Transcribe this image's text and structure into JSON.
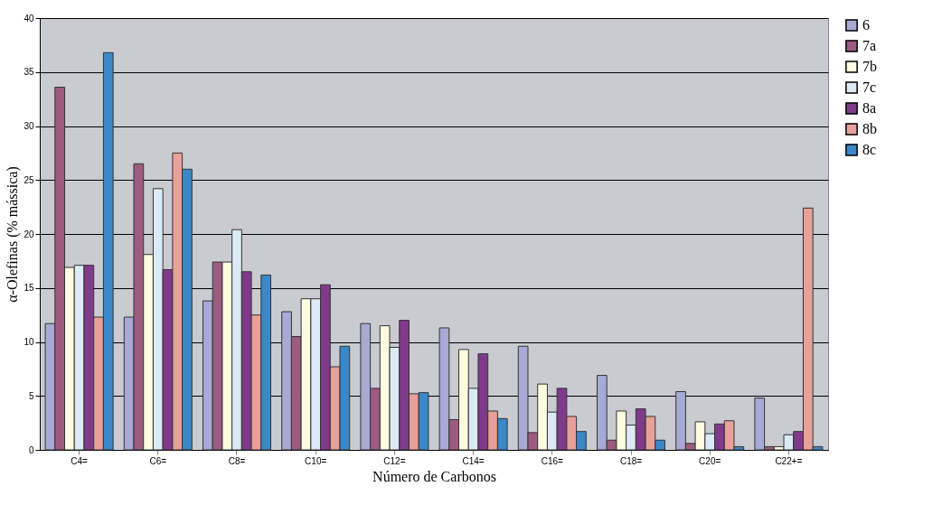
{
  "chart_data": {
    "type": "bar",
    "xlabel": "Número de Carbonos",
    "ylabel": "α-Olefinas (% mássica)",
    "categories": [
      "C4=",
      "C6=",
      "C8=",
      "C10=",
      "C12=",
      "C14=",
      "C16=",
      "C18=",
      "C20=",
      "C22+="
    ],
    "ylim": [
      0,
      40
    ],
    "yticks": [
      0,
      5,
      10,
      15,
      20,
      25,
      30,
      35,
      40
    ],
    "grid": "y",
    "legend": "right",
    "series": [
      {
        "name": "6",
        "color": "#a9a9d6",
        "values": [
          11.7,
          12.3,
          13.8,
          12.8,
          11.7,
          11.3,
          9.6,
          6.9,
          5.4,
          4.8
        ]
      },
      {
        "name": "7a",
        "color": "#9e5b80",
        "values": [
          33.6,
          26.5,
          17.4,
          10.5,
          5.7,
          2.8,
          1.6,
          0.9,
          0.6,
          0.3
        ]
      },
      {
        "name": "7b",
        "color": "#fdfbe0",
        "values": [
          16.9,
          18.1,
          17.4,
          14.0,
          11.5,
          9.3,
          6.1,
          3.6,
          2.6,
          0.3
        ]
      },
      {
        "name": "7c",
        "color": "#dceaf5",
        "values": [
          17.1,
          24.2,
          20.4,
          14.0,
          9.5,
          5.7,
          3.5,
          2.3,
          1.5,
          1.4
        ]
      },
      {
        "name": "8a",
        "color": "#7f3b8a",
        "values": [
          17.1,
          16.7,
          16.5,
          15.3,
          12.0,
          8.9,
          5.7,
          3.8,
          2.4,
          1.7
        ]
      },
      {
        "name": "8b",
        "color": "#e8a09a",
        "values": [
          12.3,
          27.5,
          12.5,
          7.7,
          5.2,
          3.6,
          3.1,
          3.1,
          2.7,
          22.4
        ]
      },
      {
        "name": "8c",
        "color": "#3a88c8",
        "values": [
          36.8,
          26.0,
          16.2,
          9.6,
          5.3,
          2.9,
          1.7,
          0.9,
          0.3,
          0.3
        ]
      }
    ]
  }
}
